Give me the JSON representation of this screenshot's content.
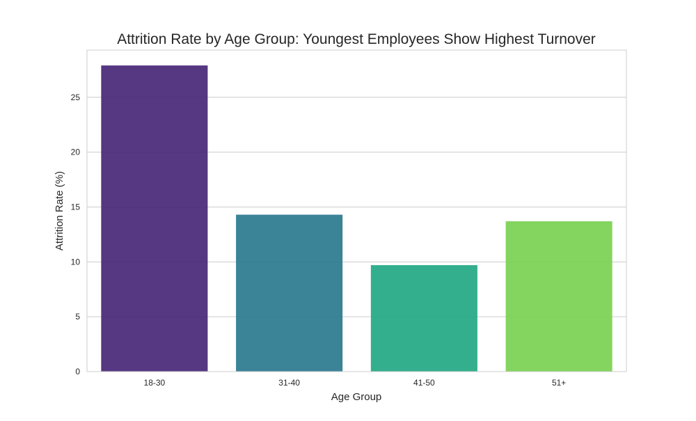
{
  "chart_data": {
    "type": "bar",
    "title": "Attrition Rate by Age Group: Youngest Employees Show Highest Turnover",
    "xlabel": "Age Group",
    "ylabel": "Attrition Rate (%)",
    "categories": [
      "18-30",
      "31-40",
      "41-50",
      "51+"
    ],
    "values": [
      27.9,
      14.3,
      9.7,
      13.7
    ],
    "colors": [
      "#482677",
      "#2a788e",
      "#22a884",
      "#7ad151"
    ],
    "ylim": [
      0,
      29.3
    ],
    "yticks": [
      0,
      5,
      10,
      15,
      20,
      25
    ],
    "grid": true,
    "legend": "none"
  }
}
